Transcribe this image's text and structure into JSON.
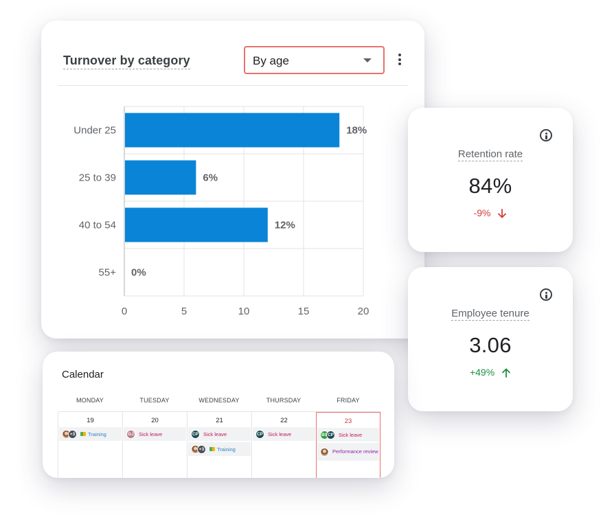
{
  "turnover": {
    "title": "Turnover by category",
    "dropdown_value": "By age"
  },
  "chart_data": {
    "type": "bar",
    "orientation": "horizontal",
    "categories": [
      "Under 25",
      "25 to 39",
      "40 to 54",
      "55+"
    ],
    "values": [
      18,
      6,
      12,
      0
    ],
    "data_labels": [
      "18%",
      "6%",
      "12%",
      "0%"
    ],
    "xlim": [
      0,
      20
    ],
    "xticks": [
      0,
      5,
      10,
      15,
      20
    ],
    "grid": true,
    "bar_color": "#0a84d6"
  },
  "retention": {
    "label": "Retention rate",
    "value": "84%",
    "delta": "-9%",
    "trend_icon": "arrow-down-icon",
    "color": "#d33b3b"
  },
  "tenure": {
    "label": "Employee tenure",
    "value": "3.06",
    "delta": "+49%",
    "trend_icon": "arrow-up-icon",
    "color": "#1e8e3e"
  },
  "calendar": {
    "title": "Calendar",
    "days": [
      {
        "name": "MONDAY",
        "date": "19",
        "events": [
          {
            "avatars": [
              "photo",
              "+3"
            ],
            "type": "training",
            "label": "Training",
            "icon": "books-icon"
          }
        ]
      },
      {
        "name": "TUESDAY",
        "date": "20",
        "events": [
          {
            "avatars": [
              "GJ"
            ],
            "type": "sick",
            "label": "Sick leave"
          }
        ]
      },
      {
        "name": "WEDNESDAY",
        "date": "21",
        "events": [
          {
            "avatars": [
              "CP"
            ],
            "type": "sick",
            "label": "Sick leave"
          },
          {
            "avatars": [
              "photo",
              "+3"
            ],
            "type": "training",
            "label": "Training",
            "icon": "books-icon"
          }
        ]
      },
      {
        "name": "THURSDAY",
        "date": "22",
        "events": [
          {
            "avatars": [
              "CP"
            ],
            "type": "sick",
            "label": "Sick leave"
          }
        ]
      },
      {
        "name": "FRIDAY",
        "date": "23",
        "today": true,
        "events": [
          {
            "avatars": [
              "BS",
              "CP"
            ],
            "type": "sick",
            "label": "Sick leave"
          },
          {
            "avatars": [
              "photo"
            ],
            "type": "perf",
            "label": "Performance review"
          }
        ]
      }
    ]
  }
}
